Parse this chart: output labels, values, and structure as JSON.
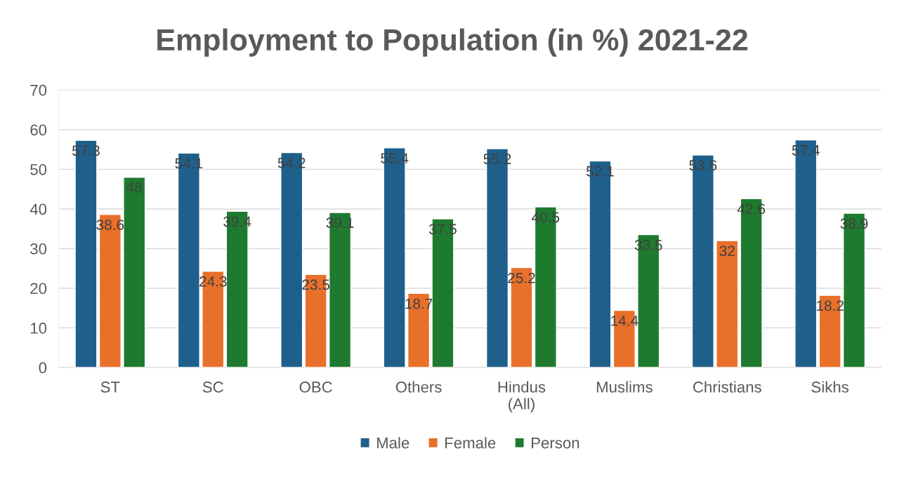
{
  "chart_data": {
    "type": "bar",
    "title": "Employment to Population (in %) 2021-22",
    "categories": [
      "ST",
      "SC",
      "OBC",
      "Others",
      "Hindus (All)",
      "Muslims",
      "Christians",
      "Sikhs"
    ],
    "series": [
      {
        "name": "Male",
        "color": "#1f5f8b",
        "values": [
          57.3,
          54.1,
          54.2,
          55.4,
          55.2,
          52.1,
          53.6,
          57.4
        ]
      },
      {
        "name": "Female",
        "color": "#e8702a",
        "values": [
          38.6,
          24.3,
          23.5,
          18.7,
          25.2,
          14.4,
          32,
          18.2
        ]
      },
      {
        "name": "Person",
        "color": "#1e7a2e",
        "values": [
          48,
          39.4,
          39.1,
          37.5,
          40.5,
          33.5,
          42.6,
          38.9
        ]
      }
    ],
    "ylim": [
      0,
      70
    ],
    "yticks": [
      0,
      10,
      20,
      30,
      40,
      50,
      60,
      70
    ],
    "grid": "y",
    "legend": "bottom",
    "data_labels": true
  }
}
